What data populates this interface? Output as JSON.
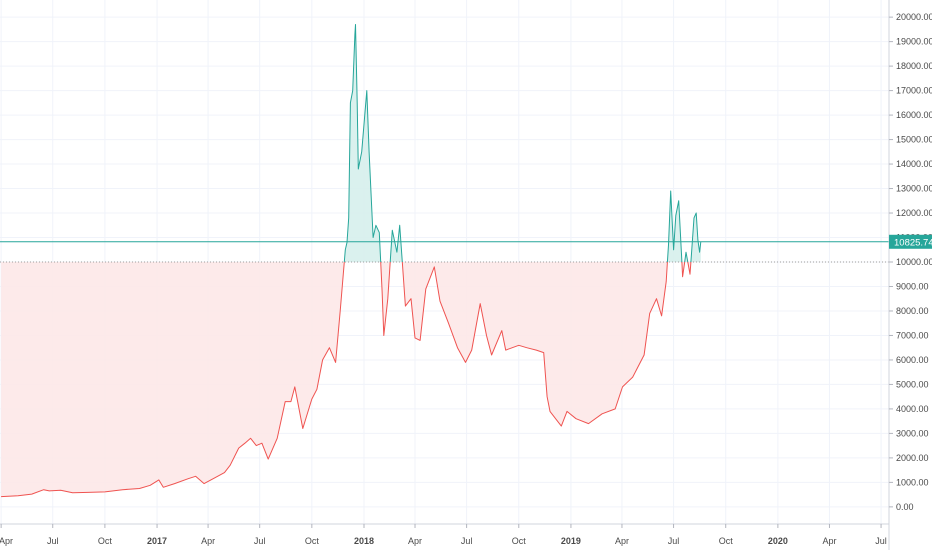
{
  "chart_data": {
    "type": "area",
    "baseline": 10000,
    "last_value": 10825.74,
    "last_value_label": "10825.74",
    "colors": {
      "above_line": "#26a69a",
      "above_fill": "#d6f0ec",
      "below_line": "#ef5350",
      "below_fill": "#fde8e8",
      "price_line": "#26a69a",
      "price_label_bg": "#26a69a",
      "baseline_line": "#9e9e9e",
      "grid": "#f0f3fa",
      "axis_text": "#4a4a4a"
    },
    "ylim": [
      -700,
      20700
    ],
    "xlim": [
      "2016-04-01",
      "2020-07-15"
    ],
    "y_ticks": [
      {
        "value": 0,
        "label": "0.00"
      },
      {
        "value": 1000,
        "label": "1000.00"
      },
      {
        "value": 2000,
        "label": "2000.00"
      },
      {
        "value": 3000,
        "label": "3000.00"
      },
      {
        "value": 4000,
        "label": "4000.00"
      },
      {
        "value": 5000,
        "label": "5000.00"
      },
      {
        "value": 6000,
        "label": "6000.00"
      },
      {
        "value": 7000,
        "label": "7000.00"
      },
      {
        "value": 8000,
        "label": "8000.00"
      },
      {
        "value": 9000,
        "label": "9000.00"
      },
      {
        "value": 10000,
        "label": "10000.00"
      },
      {
        "value": 11000,
        "label": "11000.00"
      },
      {
        "value": 12000,
        "label": "12000.00"
      },
      {
        "value": 13000,
        "label": "13000.00"
      },
      {
        "value": 14000,
        "label": "14000.00"
      },
      {
        "value": 15000,
        "label": "15000.00"
      },
      {
        "value": 16000,
        "label": "16000.00"
      },
      {
        "value": 17000,
        "label": "17000.00"
      },
      {
        "value": 18000,
        "label": "18000.00"
      },
      {
        "value": 19000,
        "label": "19000.00"
      },
      {
        "value": 20000,
        "label": "20000.00"
      }
    ],
    "x_ticks": [
      {
        "date": "2016-04-01",
        "label": "Apr",
        "year": false
      },
      {
        "date": "2016-07-01",
        "label": "Jul",
        "year": false
      },
      {
        "date": "2016-10-01",
        "label": "Oct",
        "year": false
      },
      {
        "date": "2017-01-01",
        "label": "2017",
        "year": true
      },
      {
        "date": "2017-04-01",
        "label": "Apr",
        "year": false
      },
      {
        "date": "2017-07-01",
        "label": "Jul",
        "year": false
      },
      {
        "date": "2017-10-01",
        "label": "Oct",
        "year": false
      },
      {
        "date": "2018-01-01",
        "label": "2018",
        "year": true
      },
      {
        "date": "2018-04-01",
        "label": "Apr",
        "year": false
      },
      {
        "date": "2018-07-01",
        "label": "Jul",
        "year": false
      },
      {
        "date": "2018-10-01",
        "label": "Oct",
        "year": false
      },
      {
        "date": "2019-01-01",
        "label": "2019",
        "year": true
      },
      {
        "date": "2019-04-01",
        "label": "Apr",
        "year": false
      },
      {
        "date": "2019-07-01",
        "label": "Jul",
        "year": false
      },
      {
        "date": "2019-10-01",
        "label": "Oct",
        "year": false
      },
      {
        "date": "2020-01-01",
        "label": "2020",
        "year": true
      },
      {
        "date": "2020-04-01",
        "label": "Apr",
        "year": false
      },
      {
        "date": "2020-07-01",
        "label": "Jul",
        "year": false
      }
    ],
    "series": [
      {
        "points": [
          [
            "2016-04-01",
            420
          ],
          [
            "2016-05-01",
            450
          ],
          [
            "2016-05-25",
            520
          ],
          [
            "2016-06-15",
            700
          ],
          [
            "2016-06-25",
            650
          ],
          [
            "2016-07-15",
            680
          ],
          [
            "2016-08-05",
            580
          ],
          [
            "2016-09-01",
            590
          ],
          [
            "2016-10-01",
            610
          ],
          [
            "2016-11-01",
            700
          ],
          [
            "2016-12-01",
            750
          ],
          [
            "2016-12-20",
            880
          ],
          [
            "2017-01-04",
            1100
          ],
          [
            "2017-01-12",
            800
          ],
          [
            "2017-02-01",
            950
          ],
          [
            "2017-02-25",
            1150
          ],
          [
            "2017-03-10",
            1250
          ],
          [
            "2017-03-25",
            950
          ],
          [
            "2017-04-10",
            1150
          ],
          [
            "2017-04-30",
            1400
          ],
          [
            "2017-05-10",
            1700
          ],
          [
            "2017-05-25",
            2400
          ],
          [
            "2017-06-05",
            2600
          ],
          [
            "2017-06-15",
            2800
          ],
          [
            "2017-06-25",
            2500
          ],
          [
            "2017-07-05",
            2600
          ],
          [
            "2017-07-16",
            1950
          ],
          [
            "2017-08-01",
            2800
          ],
          [
            "2017-08-15",
            4300
          ],
          [
            "2017-08-25",
            4300
          ],
          [
            "2017-09-01",
            4900
          ],
          [
            "2017-09-15",
            3200
          ],
          [
            "2017-10-01",
            4400
          ],
          [
            "2017-10-10",
            4800
          ],
          [
            "2017-10-20",
            6000
          ],
          [
            "2017-11-01",
            6500
          ],
          [
            "2017-11-12",
            5900
          ],
          [
            "2017-11-20",
            8000
          ],
          [
            "2017-11-29",
            10500
          ],
          [
            "2017-12-02",
            10800
          ],
          [
            "2017-12-05",
            11800
          ],
          [
            "2017-12-08",
            16500
          ],
          [
            "2017-12-12",
            17000
          ],
          [
            "2017-12-16",
            19300
          ],
          [
            "2017-12-17",
            19700
          ],
          [
            "2017-12-20",
            16500
          ],
          [
            "2017-12-22",
            13800
          ],
          [
            "2017-12-28",
            14500
          ],
          [
            "2018-01-06",
            17000
          ],
          [
            "2018-01-10",
            14500
          ],
          [
            "2018-01-17",
            11000
          ],
          [
            "2018-01-22",
            11500
          ],
          [
            "2018-01-28",
            11200
          ],
          [
            "2018-02-02",
            8800
          ],
          [
            "2018-02-05",
            7000
          ],
          [
            "2018-02-12",
            8500
          ],
          [
            "2018-02-20",
            11300
          ],
          [
            "2018-02-28",
            10400
          ],
          [
            "2018-03-05",
            11500
          ],
          [
            "2018-03-15",
            8200
          ],
          [
            "2018-03-25",
            8500
          ],
          [
            "2018-04-01",
            6900
          ],
          [
            "2018-04-10",
            6800
          ],
          [
            "2018-04-20",
            8900
          ],
          [
            "2018-05-05",
            9800
          ],
          [
            "2018-05-15",
            8400
          ],
          [
            "2018-05-30",
            7500
          ],
          [
            "2018-06-15",
            6500
          ],
          [
            "2018-06-29",
            5900
          ],
          [
            "2018-07-10",
            6400
          ],
          [
            "2018-07-25",
            8300
          ],
          [
            "2018-08-05",
            7000
          ],
          [
            "2018-08-14",
            6200
          ],
          [
            "2018-09-01",
            7200
          ],
          [
            "2018-09-08",
            6400
          ],
          [
            "2018-10-01",
            6600
          ],
          [
            "2018-10-15",
            6500
          ],
          [
            "2018-11-01",
            6400
          ],
          [
            "2018-11-14",
            6300
          ],
          [
            "2018-11-20",
            4500
          ],
          [
            "2018-11-25",
            3900
          ],
          [
            "2018-12-15",
            3300
          ],
          [
            "2018-12-25",
            3900
          ],
          [
            "2019-01-10",
            3600
          ],
          [
            "2019-02-01",
            3400
          ],
          [
            "2019-02-25",
            3800
          ],
          [
            "2019-03-20",
            4000
          ],
          [
            "2019-04-02",
            4900
          ],
          [
            "2019-04-20",
            5300
          ],
          [
            "2019-05-10",
            6200
          ],
          [
            "2019-05-20",
            7900
          ],
          [
            "2019-06-01",
            8500
          ],
          [
            "2019-06-10",
            7800
          ],
          [
            "2019-06-18",
            9200
          ],
          [
            "2019-06-22",
            10700
          ],
          [
            "2019-06-26",
            12900
          ],
          [
            "2019-07-01",
            10500
          ],
          [
            "2019-07-05",
            11900
          ],
          [
            "2019-07-10",
            12500
          ],
          [
            "2019-07-17",
            9400
          ],
          [
            "2019-07-23",
            10400
          ],
          [
            "2019-07-30",
            9500
          ],
          [
            "2019-08-06",
            11800
          ],
          [
            "2019-08-10",
            12000
          ],
          [
            "2019-08-13",
            10900
          ],
          [
            "2019-08-16",
            10400
          ],
          [
            "2019-08-18",
            10825.74
          ]
        ]
      }
    ]
  }
}
